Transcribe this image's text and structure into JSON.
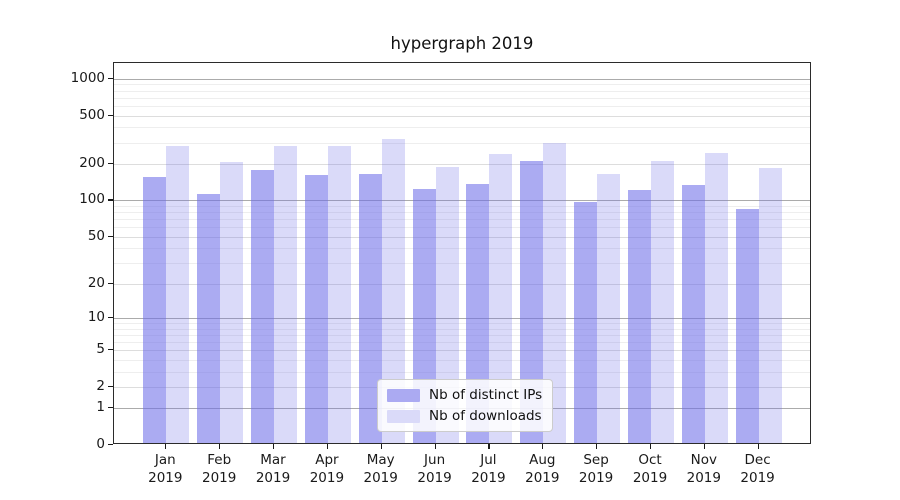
{
  "figure": {
    "title": "hypergraph 2019"
  },
  "chart_data": {
    "type": "bar",
    "title": "hypergraph 2019",
    "categories": [
      "Jan 2019",
      "Feb 2019",
      "Mar 2019",
      "Apr 2019",
      "May 2019",
      "Jun 2019",
      "Jul 2019",
      "Aug 2019",
      "Sep 2019",
      "Oct 2019",
      "Nov 2019",
      "Dec 2019"
    ],
    "series": [
      {
        "name": "Nb of distinct IPs",
        "values": [
          150,
          108,
          172,
          157,
          158,
          120,
          132,
          205,
          94,
          118,
          130,
          82
        ],
        "bar_color": "rgba(108,108,232,0.57)",
        "swatch_color": "#abaaf2"
      },
      {
        "name": "Nb of downloads",
        "values": [
          272,
          200,
          273,
          270,
          310,
          181,
          233,
          287,
          160,
          205,
          239,
          178
        ],
        "bar_color": "rgba(108,108,232,0.25)",
        "swatch_color": "#dadaf9"
      }
    ],
    "xlabel": "",
    "ylabel": "",
    "y_scale": "symlog ln(1+v)",
    "y_ticks": [
      0,
      1,
      2,
      5,
      10,
      20,
      50,
      100,
      200,
      500,
      1000
    ],
    "ylim": [
      0,
      1350
    ],
    "grid": true,
    "legend_position": "bottom-center inside plot"
  }
}
